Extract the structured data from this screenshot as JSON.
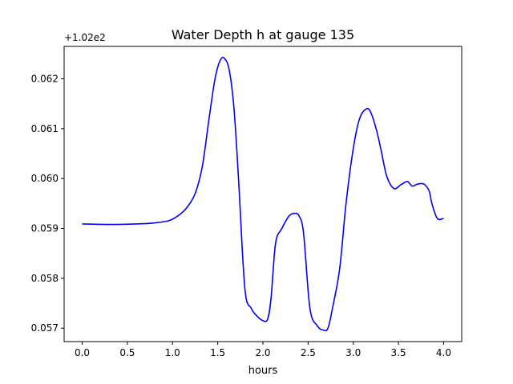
{
  "chart_data": {
    "type": "line",
    "title": "Water Depth h at gauge 135",
    "xlabel": "hours",
    "ylabel": "",
    "offset_label": "+1.02e2",
    "xlim": [
      -0.2,
      4.2
    ],
    "ylim": [
      0.05673,
      0.06265
    ],
    "xticks": [
      0.0,
      0.5,
      1.0,
      1.5,
      2.0,
      2.5,
      3.0,
      3.5,
      4.0
    ],
    "xtick_labels": [
      "0.0",
      "0.5",
      "1.0",
      "1.5",
      "2.0",
      "2.5",
      "3.0",
      "3.5",
      "4.0"
    ],
    "yticks": [
      0.057,
      0.058,
      0.059,
      0.06,
      0.061,
      0.062
    ],
    "ytick_labels": [
      "0.057",
      "0.058",
      "0.059",
      "0.060",
      "0.061",
      "0.062"
    ],
    "grid": false,
    "legend": "none",
    "series": [
      {
        "color": "#0000ff",
        "x": [
          0.0,
          0.3,
          0.6,
          0.8,
          0.95,
          1.05,
          1.15,
          1.25,
          1.33,
          1.4,
          1.47,
          1.53,
          1.58,
          1.63,
          1.68,
          1.73,
          1.8,
          1.87,
          1.93,
          1.99,
          2.05,
          2.09,
          2.14,
          2.21,
          2.29,
          2.35,
          2.4,
          2.45,
          2.52,
          2.6,
          2.67,
          2.72,
          2.77,
          2.85,
          2.92,
          3.0,
          3.07,
          3.15,
          3.2,
          3.26,
          3.31,
          3.37,
          3.45,
          3.53,
          3.6,
          3.65,
          3.7,
          3.75,
          3.79,
          3.84,
          3.87,
          3.93,
          4.0
        ],
        "y": [
          0.05909,
          0.05908,
          0.05909,
          0.05911,
          0.05915,
          0.05924,
          0.0594,
          0.0597,
          0.06025,
          0.06115,
          0.062,
          0.06238,
          0.0624,
          0.06215,
          0.0614,
          0.06,
          0.0578,
          0.0574,
          0.05725,
          0.05716,
          0.05717,
          0.0576,
          0.0587,
          0.059,
          0.05925,
          0.0593,
          0.05925,
          0.0589,
          0.0574,
          0.05705,
          0.05696,
          0.057,
          0.0574,
          0.0582,
          0.0595,
          0.0606,
          0.0612,
          0.0614,
          0.0613,
          0.06095,
          0.06055,
          0.06005,
          0.0598,
          0.05988,
          0.05994,
          0.05985,
          0.05988,
          0.0599,
          0.05988,
          0.05975,
          0.0595,
          0.0592,
          0.0592
        ]
      }
    ]
  }
}
